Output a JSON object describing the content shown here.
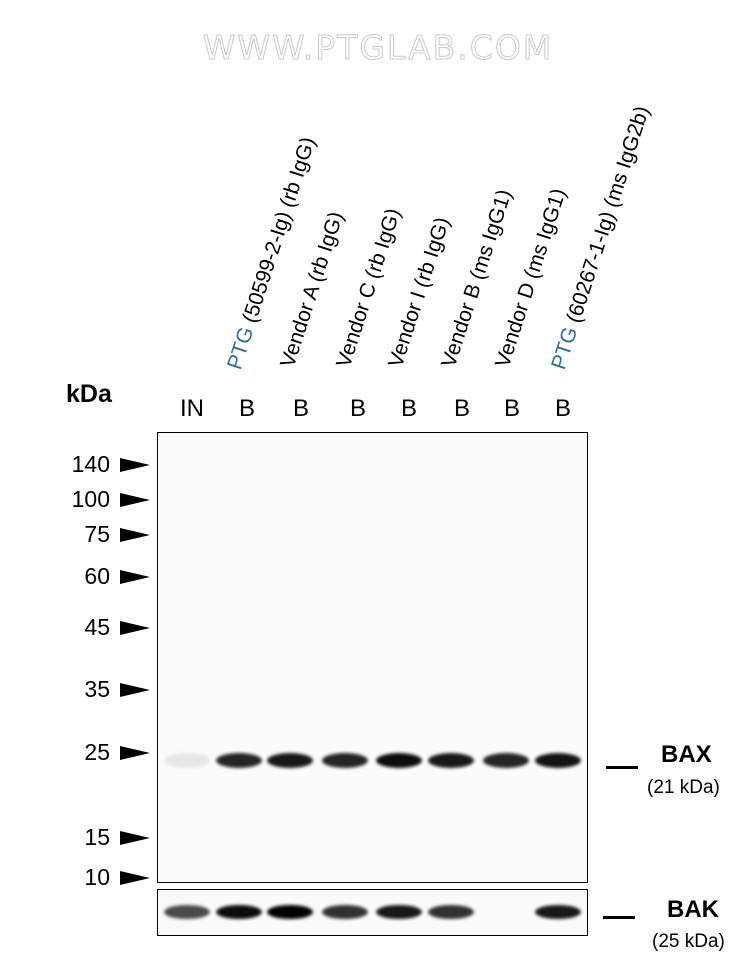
{
  "watermark": "WWW.PTGLAB.COM",
  "lanes": [
    {
      "type": "IN"
    },
    {
      "type": "B",
      "prefix": "PTG",
      "rest": " (50599-2-Ig) (rb IgG)"
    },
    {
      "type": "B",
      "prefix": "",
      "rest": "Vendor A (rb IgG)"
    },
    {
      "type": "B",
      "prefix": "",
      "rest": "Vendor C (rb IgG)"
    },
    {
      "type": "B",
      "prefix": "",
      "rest": "Vendor I (rb IgG)"
    },
    {
      "type": "B",
      "prefix": "",
      "rest": "Vendor B (ms IgG1)"
    },
    {
      "type": "B",
      "prefix": "",
      "rest": "Vendor D (ms IgG1)"
    },
    {
      "type": "B",
      "prefix": "PTG",
      "rest": " (60267-1-Ig) (ms IgG2b)"
    }
  ],
  "kda_label": "kDa",
  "markers": [
    "140",
    "100",
    "75",
    "60",
    "45",
    "35",
    "25",
    "15",
    "10"
  ],
  "targets": {
    "bax": {
      "name": "BAX",
      "size": "(21 kDa)"
    },
    "bak": {
      "name": "BAK",
      "size": "(25 kDa)"
    }
  },
  "band_intensity": {
    "bax": [
      0.08,
      0.85,
      0.9,
      0.85,
      0.95,
      0.9,
      0.85,
      0.92
    ],
    "bak": [
      0.7,
      0.95,
      1.0,
      0.8,
      0.9,
      0.8,
      0.0,
      0.9
    ]
  },
  "colors": {
    "ptg_blue": "#2e6da4",
    "band": "#000000"
  }
}
